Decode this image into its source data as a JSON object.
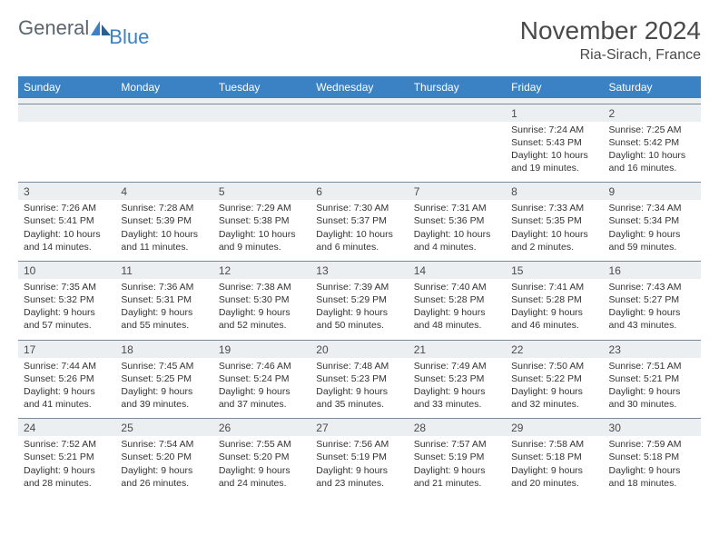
{
  "logo": {
    "text1": "General",
    "text2": "Blue"
  },
  "title": "November 2024",
  "location": "Ria-Sirach, France",
  "colors": {
    "header_bg": "#3b82c4",
    "header_text": "#ffffff",
    "daynum_bg": "#eceff1",
    "border": "#7a8a9a",
    "text": "#333333",
    "title_text": "#4a4a4a"
  },
  "weekdays": [
    "Sunday",
    "Monday",
    "Tuesday",
    "Wednesday",
    "Thursday",
    "Friday",
    "Saturday"
  ],
  "weeks": [
    {
      "cells": [
        {
          "day": "",
          "lines": [
            "",
            "",
            "",
            ""
          ]
        },
        {
          "day": "",
          "lines": [
            "",
            "",
            "",
            ""
          ]
        },
        {
          "day": "",
          "lines": [
            "",
            "",
            "",
            ""
          ]
        },
        {
          "day": "",
          "lines": [
            "",
            "",
            "",
            ""
          ]
        },
        {
          "day": "",
          "lines": [
            "",
            "",
            "",
            ""
          ]
        },
        {
          "day": "1",
          "lines": [
            "Sunrise: 7:24 AM",
            "Sunset: 5:43 PM",
            "Daylight: 10 hours",
            "and 19 minutes."
          ]
        },
        {
          "day": "2",
          "lines": [
            "Sunrise: 7:25 AM",
            "Sunset: 5:42 PM",
            "Daylight: 10 hours",
            "and 16 minutes."
          ]
        }
      ]
    },
    {
      "cells": [
        {
          "day": "3",
          "lines": [
            "Sunrise: 7:26 AM",
            "Sunset: 5:41 PM",
            "Daylight: 10 hours",
            "and 14 minutes."
          ]
        },
        {
          "day": "4",
          "lines": [
            "Sunrise: 7:28 AM",
            "Sunset: 5:39 PM",
            "Daylight: 10 hours",
            "and 11 minutes."
          ]
        },
        {
          "day": "5",
          "lines": [
            "Sunrise: 7:29 AM",
            "Sunset: 5:38 PM",
            "Daylight: 10 hours",
            "and 9 minutes."
          ]
        },
        {
          "day": "6",
          "lines": [
            "Sunrise: 7:30 AM",
            "Sunset: 5:37 PM",
            "Daylight: 10 hours",
            "and 6 minutes."
          ]
        },
        {
          "day": "7",
          "lines": [
            "Sunrise: 7:31 AM",
            "Sunset: 5:36 PM",
            "Daylight: 10 hours",
            "and 4 minutes."
          ]
        },
        {
          "day": "8",
          "lines": [
            "Sunrise: 7:33 AM",
            "Sunset: 5:35 PM",
            "Daylight: 10 hours",
            "and 2 minutes."
          ]
        },
        {
          "day": "9",
          "lines": [
            "Sunrise: 7:34 AM",
            "Sunset: 5:34 PM",
            "Daylight: 9 hours",
            "and 59 minutes."
          ]
        }
      ]
    },
    {
      "cells": [
        {
          "day": "10",
          "lines": [
            "Sunrise: 7:35 AM",
            "Sunset: 5:32 PM",
            "Daylight: 9 hours",
            "and 57 minutes."
          ]
        },
        {
          "day": "11",
          "lines": [
            "Sunrise: 7:36 AM",
            "Sunset: 5:31 PM",
            "Daylight: 9 hours",
            "and 55 minutes."
          ]
        },
        {
          "day": "12",
          "lines": [
            "Sunrise: 7:38 AM",
            "Sunset: 5:30 PM",
            "Daylight: 9 hours",
            "and 52 minutes."
          ]
        },
        {
          "day": "13",
          "lines": [
            "Sunrise: 7:39 AM",
            "Sunset: 5:29 PM",
            "Daylight: 9 hours",
            "and 50 minutes."
          ]
        },
        {
          "day": "14",
          "lines": [
            "Sunrise: 7:40 AM",
            "Sunset: 5:28 PM",
            "Daylight: 9 hours",
            "and 48 minutes."
          ]
        },
        {
          "day": "15",
          "lines": [
            "Sunrise: 7:41 AM",
            "Sunset: 5:28 PM",
            "Daylight: 9 hours",
            "and 46 minutes."
          ]
        },
        {
          "day": "16",
          "lines": [
            "Sunrise: 7:43 AM",
            "Sunset: 5:27 PM",
            "Daylight: 9 hours",
            "and 43 minutes."
          ]
        }
      ]
    },
    {
      "cells": [
        {
          "day": "17",
          "lines": [
            "Sunrise: 7:44 AM",
            "Sunset: 5:26 PM",
            "Daylight: 9 hours",
            "and 41 minutes."
          ]
        },
        {
          "day": "18",
          "lines": [
            "Sunrise: 7:45 AM",
            "Sunset: 5:25 PM",
            "Daylight: 9 hours",
            "and 39 minutes."
          ]
        },
        {
          "day": "19",
          "lines": [
            "Sunrise: 7:46 AM",
            "Sunset: 5:24 PM",
            "Daylight: 9 hours",
            "and 37 minutes."
          ]
        },
        {
          "day": "20",
          "lines": [
            "Sunrise: 7:48 AM",
            "Sunset: 5:23 PM",
            "Daylight: 9 hours",
            "and 35 minutes."
          ]
        },
        {
          "day": "21",
          "lines": [
            "Sunrise: 7:49 AM",
            "Sunset: 5:23 PM",
            "Daylight: 9 hours",
            "and 33 minutes."
          ]
        },
        {
          "day": "22",
          "lines": [
            "Sunrise: 7:50 AM",
            "Sunset: 5:22 PM",
            "Daylight: 9 hours",
            "and 32 minutes."
          ]
        },
        {
          "day": "23",
          "lines": [
            "Sunrise: 7:51 AM",
            "Sunset: 5:21 PM",
            "Daylight: 9 hours",
            "and 30 minutes."
          ]
        }
      ]
    },
    {
      "cells": [
        {
          "day": "24",
          "lines": [
            "Sunrise: 7:52 AM",
            "Sunset: 5:21 PM",
            "Daylight: 9 hours",
            "and 28 minutes."
          ]
        },
        {
          "day": "25",
          "lines": [
            "Sunrise: 7:54 AM",
            "Sunset: 5:20 PM",
            "Daylight: 9 hours",
            "and 26 minutes."
          ]
        },
        {
          "day": "26",
          "lines": [
            "Sunrise: 7:55 AM",
            "Sunset: 5:20 PM",
            "Daylight: 9 hours",
            "and 24 minutes."
          ]
        },
        {
          "day": "27",
          "lines": [
            "Sunrise: 7:56 AM",
            "Sunset: 5:19 PM",
            "Daylight: 9 hours",
            "and 23 minutes."
          ]
        },
        {
          "day": "28",
          "lines": [
            "Sunrise: 7:57 AM",
            "Sunset: 5:19 PM",
            "Daylight: 9 hours",
            "and 21 minutes."
          ]
        },
        {
          "day": "29",
          "lines": [
            "Sunrise: 7:58 AM",
            "Sunset: 5:18 PM",
            "Daylight: 9 hours",
            "and 20 minutes."
          ]
        },
        {
          "day": "30",
          "lines": [
            "Sunrise: 7:59 AM",
            "Sunset: 5:18 PM",
            "Daylight: 9 hours",
            "and 18 minutes."
          ]
        }
      ]
    }
  ]
}
